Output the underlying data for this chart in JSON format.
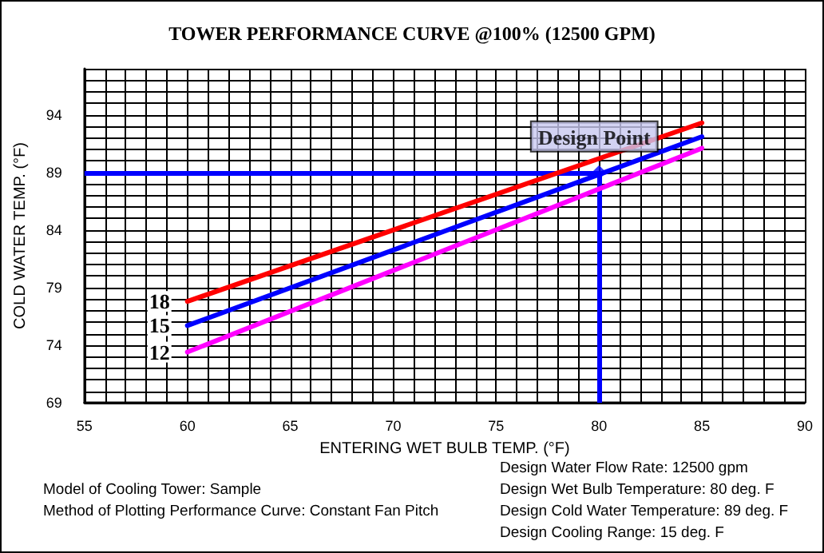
{
  "chart_data": {
    "type": "line",
    "title": "TOWER PERFORMANCE CURVE @100% (12500 GPM)",
    "xlabel": "ENTERING WET BULB TEMP. (°F)",
    "ylabel": "COLD WATER TEMP. (°F)",
    "x": [
      60,
      85
    ],
    "series": [
      {
        "name": "18",
        "color": "#ff0000",
        "values": [
          77.8,
          93.3
        ]
      },
      {
        "name": "15",
        "color": "#0000ff",
        "values": [
          75.7,
          92.1
        ]
      },
      {
        "name": "12",
        "color": "#ff00ff",
        "values": [
          73.4,
          91.1
        ]
      }
    ],
    "xlim": [
      55,
      90
    ],
    "xticks": [
      55,
      60,
      65,
      70,
      75,
      80,
      85,
      90
    ],
    "ylim": [
      69,
      98
    ],
    "yticks": [
      69,
      74,
      79,
      84,
      89,
      94
    ],
    "ref_lines": [
      {
        "axis": "y",
        "value": 89,
        "color": "#0000ff"
      },
      {
        "axis": "x",
        "value": 80,
        "color": "#0000ff"
      }
    ],
    "annotations": [
      {
        "text": "Design Point",
        "x": 80,
        "y": 89
      },
      "Model of Cooling Tower: Sample",
      "Method of Plotting Performance Curve: Constant Fan Pitch",
      "Design Water Flow Rate: 12500 gpm",
      "Design Wet Bulb Temperature: 80 deg. F",
      "Design Cold Water Temperature: 89 deg. F",
      "Design Cooling Range: 15 deg. F"
    ],
    "grid": true,
    "legend": false,
    "marker": "none",
    "line_style": "solid"
  }
}
